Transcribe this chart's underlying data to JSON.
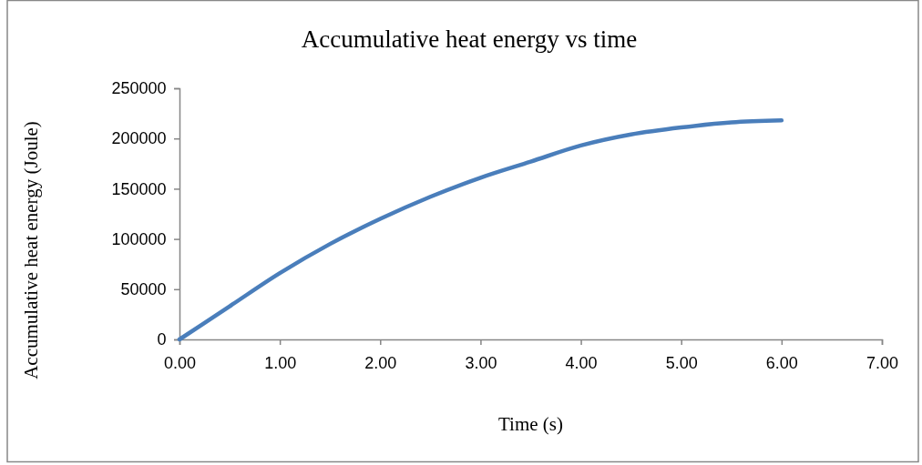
{
  "chart_data": {
    "type": "line",
    "title": "Accumulative heat energy vs time",
    "xlabel": "Time (s)",
    "ylabel": "Accumulative heat energy (Joule)",
    "x": [
      0,
      0.5,
      1,
      1.5,
      2,
      2.5,
      3,
      3.5,
      4,
      4.5,
      5,
      5.5,
      6
    ],
    "series": [
      {
        "color": "#4a7ebb",
        "values": [
          0,
          33000,
          66000,
          95000,
          120000,
          142000,
          161000,
          177000,
          193000,
          204000,
          211000,
          216000,
          218000
        ]
      }
    ],
    "xlim": [
      0,
      7
    ],
    "xticks": [
      {
        "value": 0,
        "label": "0.00"
      },
      {
        "value": 1,
        "label": "1.00"
      },
      {
        "value": 2,
        "label": "2.00"
      },
      {
        "value": 3,
        "label": "3.00"
      },
      {
        "value": 4,
        "label": "4.00"
      },
      {
        "value": 5,
        "label": "5.00"
      },
      {
        "value": 6,
        "label": "6.00"
      },
      {
        "value": 7,
        "label": "7.00"
      }
    ],
    "ylim": [
      0,
      250000
    ],
    "yticks": [
      0,
      50000,
      100000,
      150000,
      200000,
      250000
    ],
    "grid": false,
    "marker": "none",
    "line_style": "solid"
  }
}
